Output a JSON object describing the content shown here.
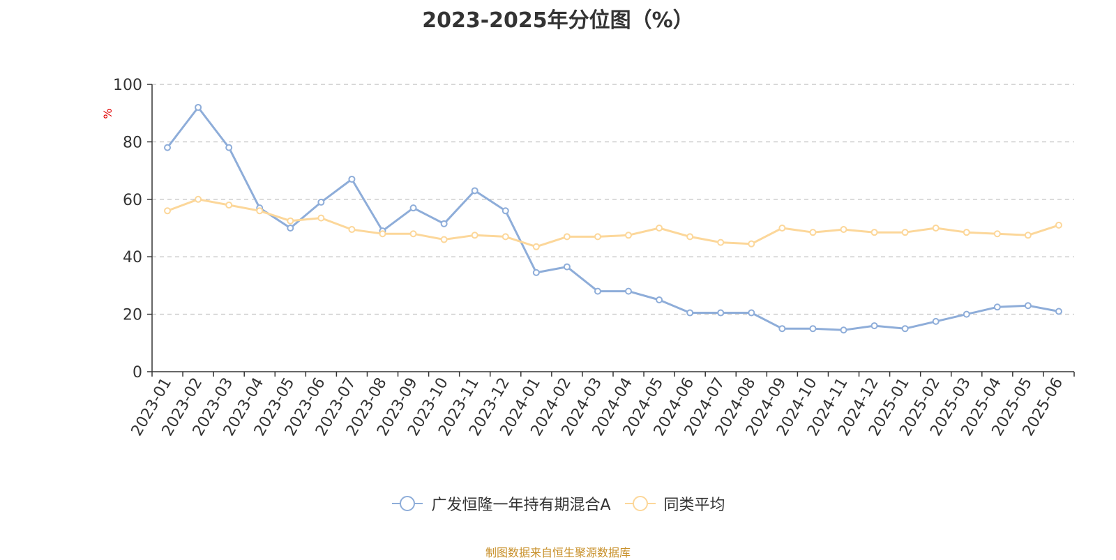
{
  "chart_data": {
    "type": "line",
    "title": "2023-2025年分位图（%）",
    "ylabel": "%",
    "ylim": [
      0,
      100
    ],
    "yticks": [
      0,
      20,
      40,
      60,
      80,
      100
    ],
    "grid": "horizontal-dashed",
    "legend_position": "bottom",
    "categories": [
      "2023-01",
      "2023-02",
      "2023-03",
      "2023-04",
      "2023-05",
      "2023-06",
      "2023-07",
      "2023-08",
      "2023-09",
      "2023-10",
      "2023-11",
      "2023-12",
      "2024-01",
      "2024-02",
      "2024-03",
      "2024-04",
      "2024-05",
      "2024-06",
      "2024-07",
      "2024-08",
      "2024-09",
      "2024-10",
      "2024-11",
      "2024-12",
      "2025-01",
      "2025-02",
      "2025-03",
      "2025-04",
      "2025-05",
      "2025-06"
    ],
    "series": [
      {
        "name": "广发恒隆一年持有期混合A",
        "color": "#8eadd9",
        "values": [
          78,
          92,
          78,
          57,
          50,
          59,
          67,
          49,
          57,
          51.5,
          63,
          56,
          34.5,
          36.5,
          28,
          28,
          25,
          20.5,
          20.5,
          20.5,
          15,
          15,
          14.5,
          16,
          15,
          17.5,
          20,
          22.5,
          23,
          21
        ]
      },
      {
        "name": "同类平均",
        "color": "#fcd79a",
        "values": [
          56,
          60,
          58,
          56,
          52.5,
          53.5,
          49.5,
          48,
          48,
          46,
          47.5,
          47,
          43.5,
          47,
          47,
          47.5,
          50,
          47,
          45,
          44.5,
          50,
          48.5,
          49.5,
          48.5,
          48.5,
          50,
          48.5,
          48,
          47.5,
          51
        ]
      }
    ]
  },
  "footer": {
    "source": "制图数据来自恒生聚源数据库",
    "source_color": "#c8902a"
  }
}
